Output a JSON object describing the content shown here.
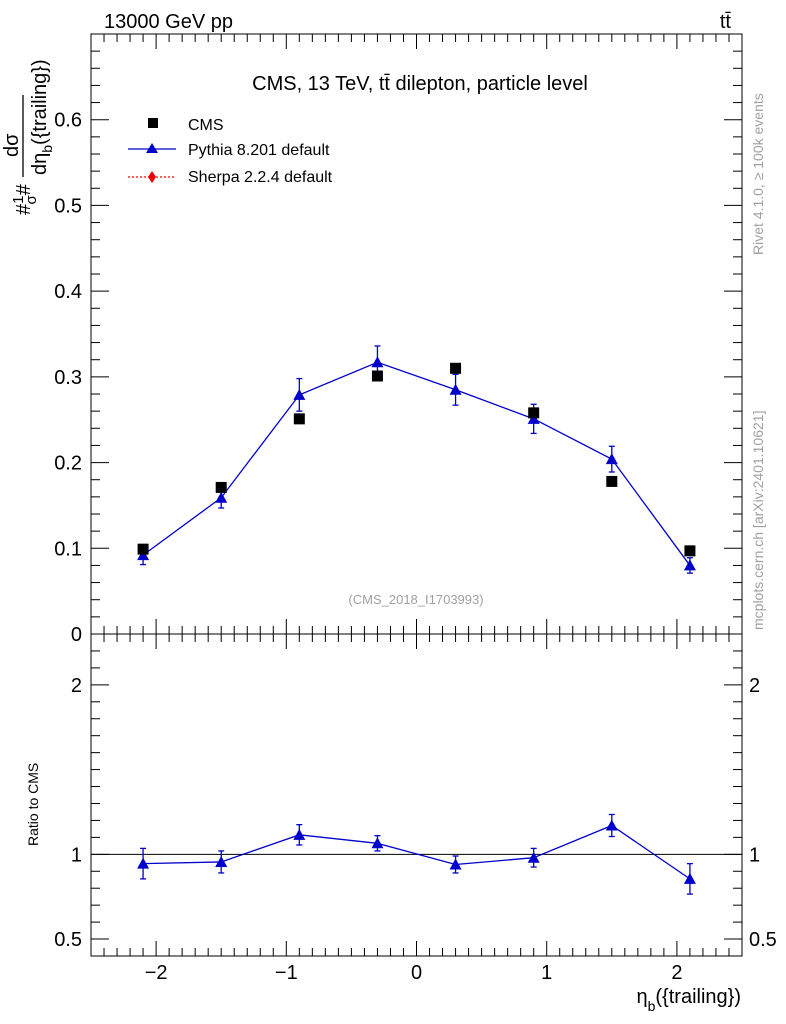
{
  "header": {
    "left": "13000 GeV pp",
    "right": "tt̄"
  },
  "side_labels": {
    "rivet": "Rivet 4.1.0, ≥ 100k events",
    "mcplots": "mcplots.cern.ch [arXiv:2401.10621]"
  },
  "colors": {
    "data": "#000000",
    "pythia": "#0000cc",
    "sherpa": "#ee0000",
    "watermark": "#a0a0a0"
  },
  "chart_data": [
    {
      "type": "scatter",
      "panel": "main",
      "title": "CMS, 13 TeV, tt̄ dilepton, particle level",
      "watermark": "(CMS_2018_I1703993)",
      "xlabel": "η_b({trailing})",
      "ylabel": "#1/σ # dσ/dη_b({trailing})",
      "xlim": [
        -2.5,
        2.5
      ],
      "ylim": [
        0,
        0.7
      ],
      "yticks": [
        "0",
        "0.1",
        "0.2",
        "0.3",
        "0.4",
        "0.5",
        "0.6"
      ],
      "legend_position": "top-left",
      "x": [
        -2.1,
        -1.5,
        -0.9,
        -0.3,
        0.3,
        0.9,
        1.5,
        2.1
      ],
      "series": [
        {
          "name": "CMS",
          "marker": "square",
          "values": [
            0.099,
            0.171,
            0.251,
            0.301,
            0.31,
            0.258,
            0.178,
            0.097
          ]
        },
        {
          "name": "Pythia 8.201 default",
          "marker": "triangle",
          "line": "solid",
          "values": [
            0.092,
            0.159,
            0.279,
            0.317,
            0.285,
            0.251,
            0.204,
            0.08
          ],
          "errors": [
            0.011,
            0.012,
            0.019,
            0.019,
            0.018,
            0.017,
            0.015,
            0.009
          ]
        },
        {
          "name": "Sherpa 2.2.4 default",
          "marker": "diamond",
          "line": "dotted",
          "values": []
        }
      ]
    },
    {
      "type": "line",
      "panel": "ratio",
      "ylabel": "Ratio to CMS",
      "xlabel": "η_b({trailing})",
      "xlim": [
        -2.5,
        2.5
      ],
      "ylim": [
        0.4,
        2.3
      ],
      "xticks": [
        "−2",
        "−1",
        "0",
        "1",
        "2"
      ],
      "yticks": [
        "0.5",
        "1",
        "2"
      ],
      "reference": 1,
      "x": [
        -2.1,
        -1.5,
        -0.9,
        -0.3,
        0.3,
        0.9,
        1.5,
        2.1
      ],
      "series": [
        {
          "name": "Pythia 8.201 default / CMS",
          "values": [
            0.945,
            0.955,
            1.115,
            1.065,
            0.94,
            0.98,
            1.17,
            0.855
          ],
          "errors": [
            0.09,
            0.065,
            0.06,
            0.045,
            0.05,
            0.055,
            0.065,
            0.09
          ]
        }
      ]
    }
  ]
}
